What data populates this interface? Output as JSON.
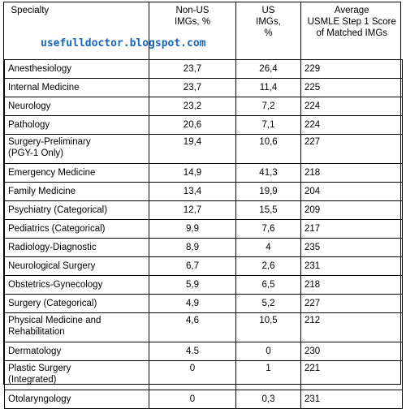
{
  "header": {
    "specialty": "Specialty",
    "non_us_line1": "Non-US",
    "non_us_line2": "IMGs, %",
    "us_line1": "US",
    "us_line2": "IMGs,",
    "us_line3": "%",
    "avg_line1": "Average",
    "avg_line2": "USMLE Step 1 Score",
    "avg_line3": "of Matched IMGs"
  },
  "watermark": "usefulldoctor.blogspot.com",
  "rows": [
    {
      "specialty": [
        "Anesthesiology"
      ],
      "non_us": "23,7",
      "us": "26,4",
      "score": "229"
    },
    {
      "specialty": [
        "Internal Medicine"
      ],
      "non_us": "23,7",
      "us": "11,4",
      "score": "225"
    },
    {
      "specialty": [
        "Neurology"
      ],
      "non_us": "23,2",
      "us": "7,2",
      "score": "224"
    },
    {
      "specialty": [
        "Pathology"
      ],
      "non_us": "20,6",
      "us": "7,1",
      "score": "224"
    },
    {
      "specialty": [
        "Surgery-Preliminary",
        "(PGY-1 Only)"
      ],
      "non_us": "19,4",
      "us": "10,6",
      "score": "227"
    },
    {
      "specialty": [
        "Emergency Medicine"
      ],
      "non_us": "14,9",
      "us": "41,3",
      "score": "218"
    },
    {
      "specialty": [
        "Family Medicine"
      ],
      "non_us": "13,4",
      "us": "19,9",
      "score": "204"
    },
    {
      "specialty": [
        "Psychiatry (Categorical)"
      ],
      "non_us": "12,7",
      "us": "15,5",
      "score": "209"
    },
    {
      "specialty": [
        "Pediatrics (Categorical)"
      ],
      "non_us": "9,9",
      "us": "7,6",
      "score": "217"
    },
    {
      "specialty": [
        "Radiology-Diagnostic"
      ],
      "non_us": "8,9",
      "us": "4",
      "score": "235"
    },
    {
      "specialty": [
        "Neurological Surgery"
      ],
      "non_us": "6,7",
      "us": "2,6",
      "score": "231"
    },
    {
      "specialty": [
        "Obstetrics-Gynecology"
      ],
      "non_us": "5,9",
      "us": "6,5",
      "score": "218"
    },
    {
      "specialty": [
        "Surgery (Categorical)"
      ],
      "non_us": "4,9",
      "us": "5,2",
      "score": "227"
    },
    {
      "specialty": [
        "Physical Medicine and",
        "Rehabilitation"
      ],
      "non_us": "4,6",
      "us": "10,5",
      "score": "212"
    },
    {
      "specialty": [
        "Dermatology"
      ],
      "non_us": "4.5",
      "us": "0",
      "score": "230"
    },
    {
      "specialty": [
        "Plastic Surgery",
        "(Integrated)"
      ],
      "non_us": "0",
      "us": "1",
      "score": "221"
    },
    {
      "specialty": [
        "Otolaryngology"
      ],
      "non_us": "0",
      "us": "0,3",
      "score": "231"
    }
  ]
}
